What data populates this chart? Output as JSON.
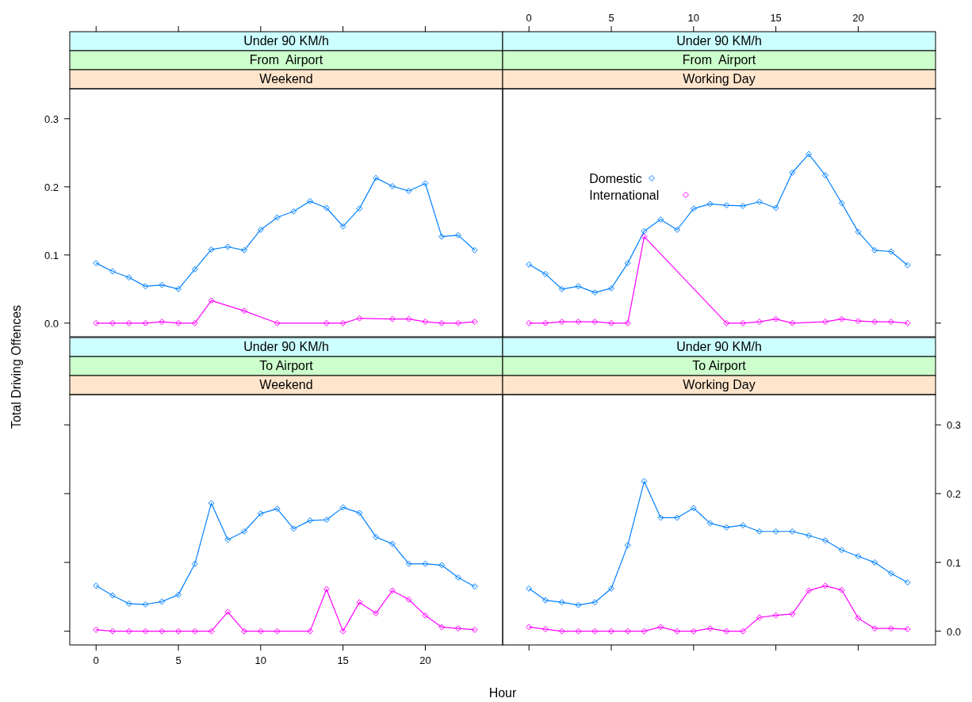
{
  "chart_data": [
    {
      "type": "line",
      "title": "Under 90 KM/h",
      "subtitle": "From  Airport",
      "annotations": [
        "Weekend"
      ],
      "ylabel": "Total Driving Offences",
      "xlim": [
        -1.6,
        24.7
      ],
      "xticks": [
        0,
        5,
        10,
        15,
        20
      ],
      "ylim": [
        -0.02,
        0.344
      ],
      "yticks": [
        {
          "value": 0,
          "label": "0.0"
        },
        0.1,
        0.2,
        0.3
      ],
      "tick_labels": "y",
      "marker": "diamond",
      "line_style": "solid",
      "grid": false,
      "legend": false,
      "series": [
        {
          "color": "#0080ff",
          "x": [
            0,
            1,
            2,
            3,
            4,
            5,
            6,
            7,
            8,
            9,
            10,
            11,
            12,
            13,
            14,
            15,
            16,
            17,
            18,
            19,
            20,
            21,
            22,
            23
          ],
          "values": [
            0.088,
            0.076,
            0.067,
            0.054,
            0.056,
            0.05,
            0.079,
            0.108,
            0.112,
            0.107,
            0.137,
            0.155,
            0.164,
            0.179,
            0.169,
            0.142,
            0.168,
            0.213,
            0.201,
            0.194,
            0.205,
            0.127,
            0.129,
            0.107
          ]
        },
        {
          "color": "#ff00ff",
          "x": [
            0,
            1,
            2,
            3,
            4,
            5,
            6,
            7,
            9,
            11,
            14,
            15,
            16,
            18,
            19,
            20,
            21,
            22,
            23
          ],
          "values": [
            0,
            0,
            0,
            0,
            0.002,
            0,
            0,
            0.033,
            0.018,
            0,
            0,
            0,
            0.007,
            0.006,
            0.006,
            0.002,
            0,
            0,
            0.002
          ]
        }
      ]
    },
    {
      "type": "line",
      "title": "Under 90 KM/h",
      "subtitle": "From  Airport",
      "annotations": [
        "Working Day"
      ],
      "xlim": [
        -1.6,
        24.7
      ],
      "xticks": [
        0,
        5,
        10,
        15,
        20
      ],
      "ylim": [
        -0.02,
        0.344
      ],
      "yticks": [
        0,
        0.1,
        0.2,
        0.3
      ],
      "tick_labels": "x",
      "marker": "diamond",
      "line_style": "solid",
      "grid": false,
      "legend": "top left",
      "series": [
        {
          "name": "Domestic",
          "color": "#0080ff",
          "x": [
            0,
            1,
            2,
            3,
            4,
            5,
            6,
            7,
            8,
            9,
            10,
            11,
            12,
            13,
            14,
            15,
            16,
            17,
            18,
            19,
            20,
            21,
            22,
            23
          ],
          "values": [
            0.086,
            0.072,
            0.05,
            0.054,
            0.045,
            0.051,
            0.088,
            0.135,
            0.152,
            0.137,
            0.168,
            0.175,
            0.173,
            0.172,
            0.178,
            0.169,
            0.221,
            0.248,
            0.217,
            0.176,
            0.134,
            0.107,
            0.105,
            0.085
          ]
        },
        {
          "name": "International",
          "color": "#ff00ff",
          "x": [
            0,
            1,
            2,
            3,
            4,
            5,
            6,
            7,
            12,
            13,
            14,
            15,
            16,
            18,
            19,
            20,
            21,
            22,
            23
          ],
          "values": [
            0,
            0,
            0.002,
            0.002,
            0.002,
            0,
            0,
            0.127,
            0,
            0,
            0.002,
            0.006,
            0,
            0.002,
            0.006,
            0.003,
            0.002,
            0.002,
            0
          ]
        }
      ]
    },
    {
      "type": "line",
      "title": "Under 90 KM/h",
      "subtitle": "To Airport",
      "annotations": [
        "Weekend"
      ],
      "xlabel": "Hour",
      "xlim": [
        -1.6,
        24.7
      ],
      "xticks": [
        0,
        5,
        10,
        15,
        20
      ],
      "ylim": [
        -0.02,
        0.344
      ],
      "yticks": [
        0,
        0.1,
        0.2,
        0.3
      ],
      "tick_labels": "x",
      "marker": "diamond",
      "line_style": "solid",
      "grid": false,
      "legend": false,
      "series": [
        {
          "color": "#0080ff",
          "x": [
            0,
            1,
            2,
            3,
            4,
            5,
            6,
            7,
            8,
            9,
            10,
            11,
            12,
            13,
            14,
            15,
            16,
            17,
            18,
            19,
            20,
            21,
            22,
            23
          ],
          "values": [
            0.066,
            0.052,
            0.04,
            0.039,
            0.043,
            0.053,
            0.098,
            0.186,
            0.133,
            0.145,
            0.171,
            0.178,
            0.149,
            0.161,
            0.162,
            0.18,
            0.172,
            0.137,
            0.127,
            0.098,
            0.098,
            0.096,
            0.078,
            0.065
          ]
        },
        {
          "color": "#ff00ff",
          "x": [
            0,
            1,
            2,
            3,
            4,
            5,
            6,
            7,
            8,
            9,
            10,
            11,
            13,
            14,
            15,
            16,
            17,
            18,
            19,
            20,
            21,
            22,
            23
          ],
          "values": [
            0.002,
            0,
            0,
            0,
            0,
            0,
            0,
            0,
            0.028,
            0,
            0,
            0,
            0,
            0.061,
            0,
            0.042,
            0.026,
            0.059,
            0.046,
            0.023,
            0.006,
            0.004,
            0.002
          ]
        }
      ]
    },
    {
      "type": "line",
      "title": "Under 90 KM/h",
      "subtitle": "To Airport",
      "annotations": [
        "Working Day"
      ],
      "xlim": [
        -1.6,
        24.7
      ],
      "xticks": [
        0,
        5,
        10,
        15,
        20
      ],
      "ylim": [
        -0.02,
        0.344
      ],
      "yticks": [
        {
          "value": 0,
          "label": "0.0"
        },
        0.1,
        0.2,
        0.3
      ],
      "tick_labels": "y",
      "marker": "diamond",
      "line_style": "solid",
      "grid": false,
      "legend": false,
      "series": [
        {
          "color": "#0080ff",
          "x": [
            0,
            1,
            2,
            3,
            4,
            5,
            6,
            7,
            8,
            9,
            10,
            11,
            12,
            13,
            14,
            15,
            16,
            17,
            18,
            19,
            20,
            21,
            22,
            23
          ],
          "values": [
            0.062,
            0.045,
            0.042,
            0.038,
            0.042,
            0.062,
            0.125,
            0.218,
            0.165,
            0.165,
            0.179,
            0.157,
            0.151,
            0.154,
            0.145,
            0.145,
            0.145,
            0.139,
            0.132,
            0.118,
            0.109,
            0.1,
            0.084,
            0.071
          ]
        },
        {
          "color": "#ff00ff",
          "x": [
            0,
            1,
            2,
            3,
            4,
            5,
            6,
            7,
            8,
            9,
            10,
            11,
            12,
            13,
            14,
            15,
            16,
            17,
            18,
            19,
            20,
            21,
            22,
            23
          ],
          "values": [
            0.006,
            0.003,
            0,
            0,
            0,
            0,
            0,
            0,
            0.006,
            0,
            0,
            0.004,
            0,
            0,
            0.02,
            0.023,
            0.025,
            0.059,
            0.066,
            0.06,
            0.019,
            0.004,
            0.004,
            0.003
          ]
        }
      ]
    }
  ]
}
